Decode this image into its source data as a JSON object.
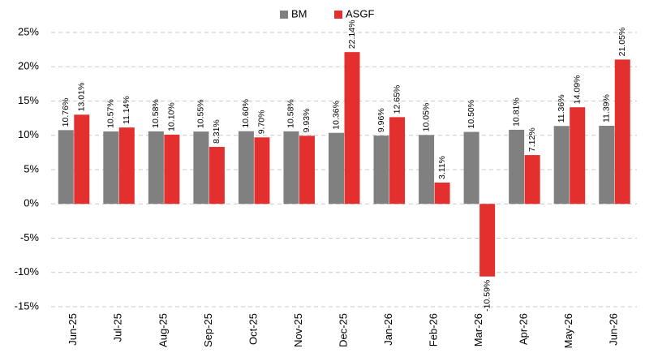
{
  "chart_data": {
    "type": "bar",
    "categories": [
      "Jun-25",
      "Jul-25",
      "Aug-25",
      "Sep-25",
      "Oct-25",
      "Nov-25",
      "Dec-25",
      "Jan-26",
      "Feb-26",
      "Mar-26",
      "Apr-26",
      "May-26",
      "Jun-26"
    ],
    "series": [
      {
        "name": "BM",
        "color": "#808080",
        "values": [
          10.76,
          10.57,
          10.58,
          10.55,
          10.6,
          10.58,
          10.36,
          9.96,
          10.05,
          10.5,
          10.81,
          11.36,
          11.39
        ],
        "value_labels": [
          "10.76%",
          "10.57%",
          "10.58%",
          "10.55%",
          "10.60%",
          "10.58%",
          "10.36%",
          "9.96%",
          "10.05%",
          "10.50%",
          "10.81%",
          "11.36%",
          "11.39%"
        ]
      },
      {
        "name": "ASGF",
        "color": "#e3302f",
        "values": [
          13.01,
          11.14,
          10.1,
          8.31,
          9.7,
          9.93,
          22.14,
          12.65,
          3.11,
          -10.59,
          7.12,
          14.09,
          21.05
        ],
        "value_labels": [
          "13.01%",
          "11.14%",
          "10.10%",
          "8.31%",
          "9.70%",
          "9.93%",
          "22.14%",
          "12.65%",
          "3.11%",
          "-10.59%",
          "7.12%",
          "14.09%",
          "21.05%"
        ]
      }
    ],
    "ylim": [
      -15,
      25
    ],
    "yticks": [
      {
        "value": -15,
        "label": "-15%"
      },
      {
        "value": -10,
        "label": "-10%"
      },
      {
        "value": -5,
        "label": "-5%"
      },
      {
        "value": 0,
        "label": "0%"
      },
      {
        "value": 5,
        "label": "5%"
      },
      {
        "value": 10,
        "label": "10%"
      },
      {
        "value": 15,
        "label": "15%"
      },
      {
        "value": 20,
        "label": "20%"
      },
      {
        "value": 25,
        "label": "25%"
      }
    ],
    "grid": true,
    "legend": "top"
  }
}
